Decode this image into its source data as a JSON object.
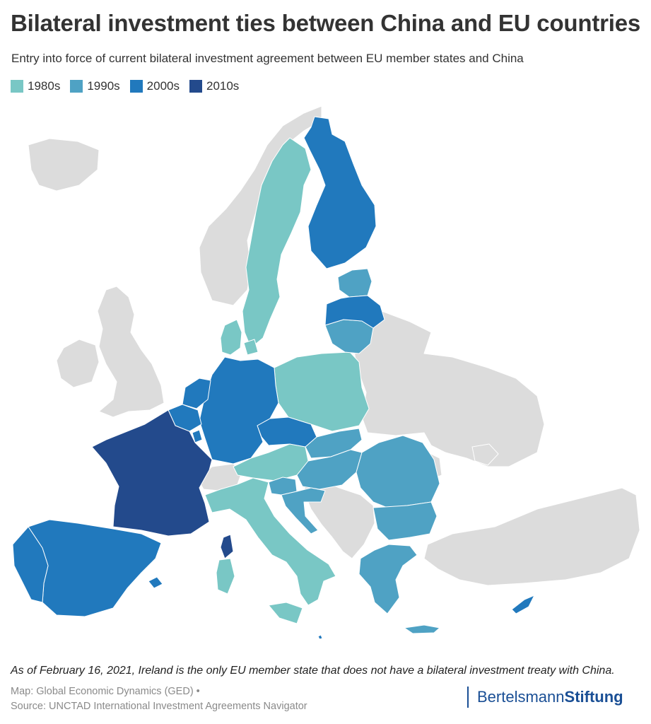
{
  "header": {
    "title": "Bilateral investment ties between China and EU countries",
    "subtitle": "Entry into force of current bilateral investment agreement between EU member states and China"
  },
  "legend": [
    {
      "label": "1980s",
      "color": "#79c7c5"
    },
    {
      "label": "1990s",
      "color": "#4fa2c4"
    },
    {
      "label": "2000s",
      "color": "#2179bd"
    },
    {
      "label": "2010s",
      "color": "#234a8c"
    }
  ],
  "colors": {
    "non_eu": "#dcdcdc",
    "no_treaty": "#dcdcdc"
  },
  "map": {
    "country_decades": {
      "Sweden": "1980s",
      "Denmark": "1980s",
      "Poland": "1980s",
      "Austria": "1980s",
      "Italy": "1980s",
      "Estonia": "1990s",
      "Lithuania": "1990s",
      "Slovakia": "1990s",
      "Hungary": "1990s",
      "Romania": "1990s",
      "Bulgaria": "1990s",
      "Greece": "1990s",
      "Slovenia": "1990s",
      "Croatia": "1990s",
      "Finland": "2000s",
      "Latvia": "2000s",
      "Germany": "2000s",
      "Netherlands": "2000s",
      "Belgium": "2000s",
      "Luxembourg": "2000s",
      "Czechia": "2000s",
      "Spain": "2000s",
      "Portugal": "2000s",
      "Malta": "2000s",
      "Cyprus": "2000s",
      "France": "2010s",
      "Ireland": "none"
    }
  },
  "footer": {
    "note": "As of February 16, 2021, Ireland is the only EU member state that does not have a bilateral investment treaty with China.",
    "map_credit": "Map: Global Economic Dynamics (GED) •",
    "source": "Source: UNCTAD International Investment Agreements Navigator",
    "logo_regular": "Bertelsmann",
    "logo_bold": "Stiftung"
  }
}
